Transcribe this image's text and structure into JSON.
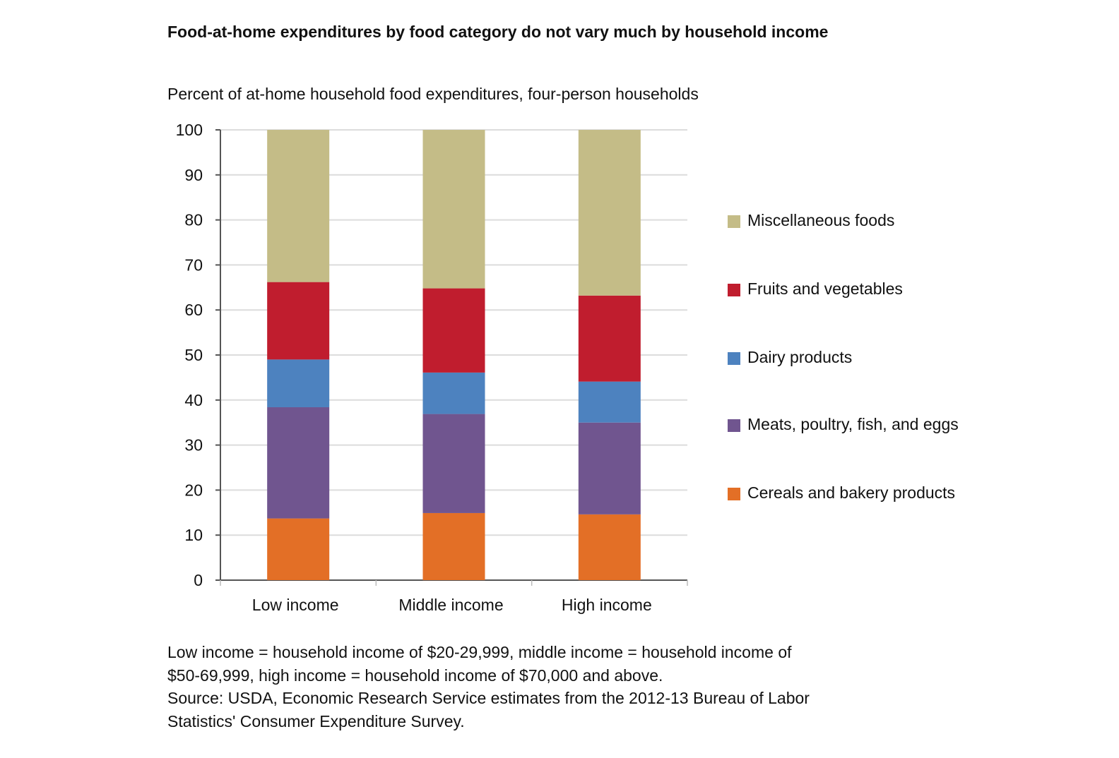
{
  "title": "Food-at-home expenditures by food category do not vary much by household income",
  "subtitle": "Percent of at-home household food expenditures, four-person households",
  "note": {
    "line1": "Low income = household income of  $20-29,999, middle income = household income of",
    "line2": "$50-69,999, high income = household income of $70,000 and above.",
    "line3": "Source: USDA, Economic Research Service estimates from the 2012-13 Bureau of Labor",
    "line4": "Statistics' Consumer Expenditure Survey."
  },
  "chart_data": {
    "type": "bar",
    "stacked": true,
    "title": "Food-at-home expenditures by food category do not vary much by household income",
    "ylabel": "Percent of at-home household food expenditures, four-person households",
    "xlabel": "",
    "ylim": [
      0,
      100
    ],
    "yticks": [
      "0",
      "10",
      "20",
      "30",
      "40",
      "50",
      "60",
      "70",
      "80",
      "90",
      "100"
    ],
    "grid": true,
    "legend_position": "right",
    "categories": [
      "Low income",
      "Middle income",
      "High income"
    ],
    "series": [
      {
        "name": "Cereals and bakery products",
        "color": "#e36f26",
        "values": [
          13.7,
          14.9,
          14.6
        ]
      },
      {
        "name": "Meats, poultry, fish, and eggs",
        "color": "#70558f",
        "values": [
          24.7,
          22.0,
          20.4
        ]
      },
      {
        "name": "Dairy products",
        "color": "#4d82bf",
        "values": [
          10.6,
          9.2,
          9.1
        ]
      },
      {
        "name": "Fruits and vegetables",
        "color": "#c01d2e",
        "values": [
          17.2,
          18.7,
          19.1
        ]
      },
      {
        "name": "Miscellaneous foods",
        "color": "#c4bc87",
        "values": [
          33.8,
          35.2,
          36.8
        ]
      }
    ],
    "legend": [
      {
        "label": "Miscellaneous foods",
        "color": "#c4bc87"
      },
      {
        "label": "Fruits and vegetables",
        "color": "#c01d2e"
      },
      {
        "label": "Dairy products",
        "color": "#4d82bf"
      },
      {
        "label": "Meats, poultry, fish, and eggs",
        "color": "#70558f"
      },
      {
        "label": "Cereals and bakery products",
        "color": "#e36f26"
      }
    ]
  }
}
